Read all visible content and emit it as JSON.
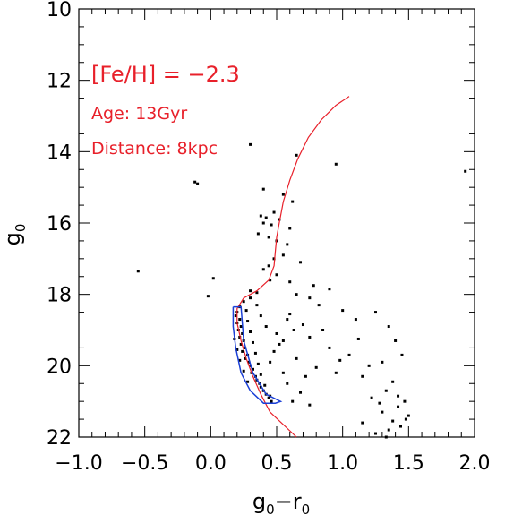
{
  "chart_data": {
    "type": "scatter",
    "title": "",
    "xlabel": "g0-r0",
    "ylabel": "g0",
    "xlim": [
      -1.0,
      2.0
    ],
    "ylim": [
      22,
      10
    ],
    "y_inverted": true,
    "xticks": [
      -1.0,
      -0.5,
      0.0,
      0.5,
      1.0,
      1.5,
      2.0
    ],
    "xtick_labels": [
      "−1.0",
      "−0.5",
      "0.0",
      "0.5",
      "1.0",
      "1.5",
      "2.0"
    ],
    "yticks": [
      10,
      12,
      14,
      16,
      18,
      20,
      22
    ],
    "ytick_labels": [
      "10",
      "12",
      "14",
      "16",
      "18",
      "20",
      "22"
    ],
    "annotations": [
      "[Fe/H] = −2.3",
      "Age: 13Gyr",
      "Distance: 8kpc"
    ],
    "colors": {
      "isochrone": "#e8202a",
      "selection_box": "#1a3fd6",
      "points": "#000000",
      "annotation": "#e8202a"
    },
    "points": [
      [
        -0.12,
        14.85
      ],
      [
        -0.1,
        14.9
      ],
      [
        -0.55,
        17.35
      ],
      [
        0.3,
        13.8
      ],
      [
        0.65,
        14.1
      ],
      [
        0.95,
        14.35
      ],
      [
        1.93,
        14.55
      ],
      [
        0.4,
        15.05
      ],
      [
        0.55,
        15.2
      ],
      [
        0.62,
        15.4
      ],
      [
        0.48,
        15.7
      ],
      [
        0.38,
        15.8
      ],
      [
        0.42,
        15.85
      ],
      [
        0.52,
        15.9
      ],
      [
        0.4,
        16.0
      ],
      [
        0.46,
        16.05
      ],
      [
        0.6,
        16.15
      ],
      [
        0.36,
        16.3
      ],
      [
        0.44,
        16.4
      ],
      [
        0.5,
        16.5
      ],
      [
        0.58,
        16.6
      ],
      [
        0.55,
        16.9
      ],
      [
        0.48,
        17.0
      ],
      [
        0.68,
        17.1
      ],
      [
        0.44,
        17.2
      ],
      [
        0.4,
        17.3
      ],
      [
        0.5,
        17.45
      ],
      [
        0.02,
        17.55
      ],
      [
        0.45,
        17.6
      ],
      [
        0.6,
        17.65
      ],
      [
        0.78,
        17.75
      ],
      [
        0.3,
        17.9
      ],
      [
        0.35,
        17.95
      ],
      [
        0.65,
        18.0
      ],
      [
        -0.02,
        18.05
      ],
      [
        0.3,
        18.1
      ],
      [
        0.25,
        18.2
      ],
      [
        0.22,
        18.35
      ],
      [
        0.2,
        18.5
      ],
      [
        0.19,
        18.6
      ],
      [
        0.22,
        18.7
      ],
      [
        0.2,
        18.8
      ],
      [
        0.23,
        18.9
      ],
      [
        0.21,
        19.0
      ],
      [
        0.24,
        19.1
      ],
      [
        0.22,
        19.2
      ],
      [
        0.25,
        19.3
      ],
      [
        0.23,
        19.4
      ],
      [
        0.26,
        19.5
      ],
      [
        0.24,
        19.6
      ],
      [
        0.28,
        19.7
      ],
      [
        0.26,
        19.8
      ],
      [
        0.29,
        19.9
      ],
      [
        0.3,
        20.0
      ],
      [
        0.32,
        20.1
      ],
      [
        0.31,
        20.2
      ],
      [
        0.34,
        20.3
      ],
      [
        0.35,
        20.4
      ],
      [
        0.37,
        20.5
      ],
      [
        0.38,
        20.6
      ],
      [
        0.4,
        20.7
      ],
      [
        0.42,
        20.8
      ],
      [
        0.44,
        20.9
      ],
      [
        0.46,
        21.0
      ],
      [
        0.27,
        18.45
      ],
      [
        0.28,
        18.75
      ],
      [
        0.3,
        19.05
      ],
      [
        0.32,
        19.35
      ],
      [
        0.34,
        19.65
      ],
      [
        0.36,
        19.95
      ],
      [
        0.38,
        20.25
      ],
      [
        0.41,
        20.55
      ],
      [
        0.45,
        20.85
      ],
      [
        0.18,
        19.25
      ],
      [
        0.2,
        19.55
      ],
      [
        0.22,
        19.85
      ],
      [
        0.25,
        20.15
      ],
      [
        0.28,
        20.45
      ],
      [
        0.35,
        18.3
      ],
      [
        0.38,
        18.6
      ],
      [
        0.42,
        18.9
      ],
      [
        0.5,
        19.1
      ],
      [
        0.55,
        19.3
      ],
      [
        0.48,
        19.6
      ],
      [
        0.6,
        18.55
      ],
      [
        0.7,
        18.85
      ],
      [
        0.75,
        19.2
      ],
      [
        0.85,
        19.0
      ],
      [
        0.9,
        19.5
      ],
      [
        0.65,
        19.8
      ],
      [
        0.8,
        20.05
      ],
      [
        0.72,
        20.3
      ],
      [
        0.58,
        20.5
      ],
      [
        0.68,
        20.75
      ],
      [
        0.62,
        21.0
      ],
      [
        0.75,
        21.1
      ],
      [
        0.95,
        20.2
      ],
      [
        1.05,
        19.7
      ],
      [
        1.0,
        18.45
      ],
      [
        1.1,
        18.7
      ],
      [
        0.98,
        19.85
      ],
      [
        1.15,
        20.3
      ],
      [
        1.22,
        20.9
      ],
      [
        1.25,
        18.5
      ],
      [
        1.35,
        18.9
      ],
      [
        1.12,
        19.25
      ],
      [
        1.3,
        19.9
      ],
      [
        1.2,
        20.0
      ],
      [
        1.4,
        19.3
      ],
      [
        1.45,
        19.7
      ],
      [
        1.38,
        20.45
      ],
      [
        1.33,
        20.7
      ],
      [
        1.42,
        20.85
      ],
      [
        1.28,
        21.05
      ],
      [
        1.47,
        21.0
      ],
      [
        1.3,
        21.3
      ],
      [
        1.38,
        21.55
      ],
      [
        1.44,
        21.7
      ],
      [
        1.5,
        21.4
      ],
      [
        1.35,
        21.8
      ],
      [
        1.25,
        21.9
      ],
      [
        1.15,
        21.6
      ],
      [
        1.42,
        21.15
      ],
      [
        1.48,
        21.5
      ],
      [
        1.33,
        22.0
      ],
      [
        0.75,
        18.1
      ],
      [
        0.82,
        18.3
      ],
      [
        0.9,
        17.85
      ],
      [
        0.58,
        18.7
      ],
      [
        0.52,
        19.4
      ],
      [
        0.45,
        19.9
      ],
      [
        0.55,
        20.2
      ],
      [
        0.63,
        19.0
      ]
    ],
    "isochrone": [
      [
        0.45,
        21.3
      ],
      [
        0.38,
        20.8
      ],
      [
        0.32,
        20.3
      ],
      [
        0.27,
        19.8
      ],
      [
        0.23,
        19.3
      ],
      [
        0.2,
        18.8
      ],
      [
        0.2,
        18.4
      ],
      [
        0.25,
        18.1
      ],
      [
        0.35,
        17.9
      ],
      [
        0.44,
        17.6
      ],
      [
        0.48,
        17.2
      ],
      [
        0.49,
        16.8
      ],
      [
        0.5,
        16.4
      ],
      [
        0.52,
        16.0
      ],
      [
        0.55,
        15.4
      ],
      [
        0.6,
        14.8
      ],
      [
        0.66,
        14.2
      ],
      [
        0.74,
        13.6
      ],
      [
        0.84,
        13.1
      ],
      [
        0.95,
        12.7
      ],
      [
        1.05,
        12.45
      ]
    ],
    "isochrone_extension": [
      [
        0.45,
        21.3
      ],
      [
        0.65,
        22.0
      ]
    ],
    "selection_box": [
      [
        0.17,
        18.35
      ],
      [
        0.23,
        18.35
      ],
      [
        0.25,
        19.3
      ],
      [
        0.32,
        20.2
      ],
      [
        0.42,
        20.8
      ],
      [
        0.53,
        21.0
      ],
      [
        0.49,
        21.05
      ],
      [
        0.4,
        21.05
      ],
      [
        0.3,
        20.7
      ],
      [
        0.23,
        20.2
      ],
      [
        0.19,
        19.5
      ],
      [
        0.17,
        18.9
      ],
      [
        0.17,
        18.35
      ]
    ]
  }
}
